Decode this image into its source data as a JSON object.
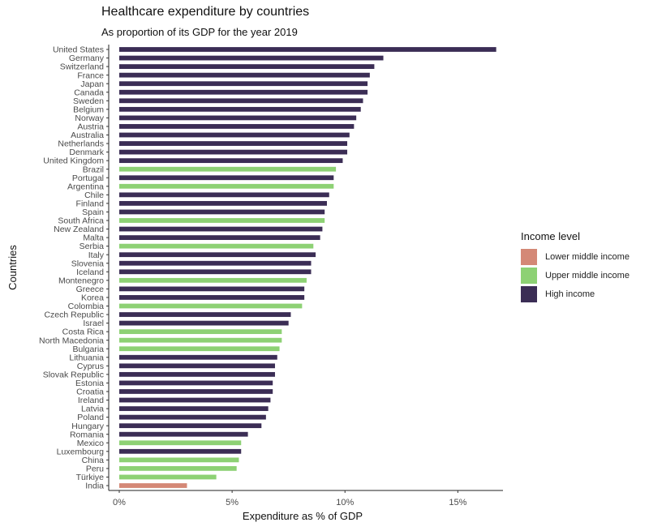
{
  "chart_data": {
    "type": "bar",
    "orientation": "horizontal",
    "title": "Healthcare expenditure by countries",
    "subtitle": "As proportion of its GDP for the year 2019",
    "xlabel": "Expenditure as % of GDP",
    "ylabel": "Countries",
    "xlim": [
      0,
      17
    ],
    "x_ticks": [
      {
        "value": 0,
        "label": "0%"
      },
      {
        "value": 5,
        "label": "5%"
      },
      {
        "value": 10,
        "label": "10%"
      },
      {
        "value": 15,
        "label": "15%"
      }
    ],
    "grid": false,
    "legend": {
      "title": "Income level",
      "position": "right",
      "entries": [
        {
          "key": "lower_middle",
          "label": "Lower middle income",
          "color": "#d48876"
        },
        {
          "key": "upper_middle",
          "label": "Upper middle income",
          "color": "#8dd174"
        },
        {
          "key": "high",
          "label": "High income",
          "color": "#3b2d55"
        }
      ]
    },
    "categories": [
      "United States",
      "Germany",
      "Switzerland",
      "France",
      "Japan",
      "Canada",
      "Sweden",
      "Belgium",
      "Norway",
      "Austria",
      "Australia",
      "Netherlands",
      "Denmark",
      "United Kingdom",
      "Brazil",
      "Portugal",
      "Argentina",
      "Chile",
      "Finland",
      "Spain",
      "South Africa",
      "New Zealand",
      "Malta",
      "Serbia",
      "Italy",
      "Slovenia",
      "Iceland",
      "Montenegro",
      "Greece",
      "Korea",
      "Colombia",
      "Czech Republic",
      "Israel",
      "Costa Rica",
      "North Macedonia",
      "Bulgaria",
      "Lithuania",
      "Cyprus",
      "Slovak Republic",
      "Estonia",
      "Croatia",
      "Ireland",
      "Latvia",
      "Poland",
      "Hungary",
      "Romania",
      "Mexico",
      "Luxembourg",
      "China",
      "Peru",
      "Türkiye",
      "India"
    ],
    "values": [
      16.7,
      11.7,
      11.3,
      11.1,
      11.0,
      11.0,
      10.8,
      10.7,
      10.5,
      10.4,
      10.2,
      10.1,
      10.1,
      9.9,
      9.6,
      9.5,
      9.5,
      9.3,
      9.2,
      9.1,
      9.1,
      9.0,
      8.9,
      8.6,
      8.7,
      8.5,
      8.5,
      8.3,
      8.2,
      8.2,
      8.1,
      7.6,
      7.5,
      7.2,
      7.2,
      7.1,
      7.0,
      6.9,
      6.9,
      6.8,
      6.8,
      6.7,
      6.6,
      6.5,
      6.3,
      5.7,
      5.4,
      5.4,
      5.3,
      5.2,
      4.3,
      3.0
    ],
    "income_levels": [
      "high",
      "high",
      "high",
      "high",
      "high",
      "high",
      "high",
      "high",
      "high",
      "high",
      "high",
      "high",
      "high",
      "high",
      "upper_middle",
      "high",
      "upper_middle",
      "high",
      "high",
      "high",
      "upper_middle",
      "high",
      "high",
      "upper_middle",
      "high",
      "high",
      "high",
      "upper_middle",
      "high",
      "high",
      "upper_middle",
      "high",
      "high",
      "upper_middle",
      "upper_middle",
      "upper_middle",
      "high",
      "high",
      "high",
      "high",
      "high",
      "high",
      "high",
      "high",
      "high",
      "high",
      "upper_middle",
      "high",
      "upper_middle",
      "upper_middle",
      "upper_middle",
      "lower_middle"
    ]
  }
}
